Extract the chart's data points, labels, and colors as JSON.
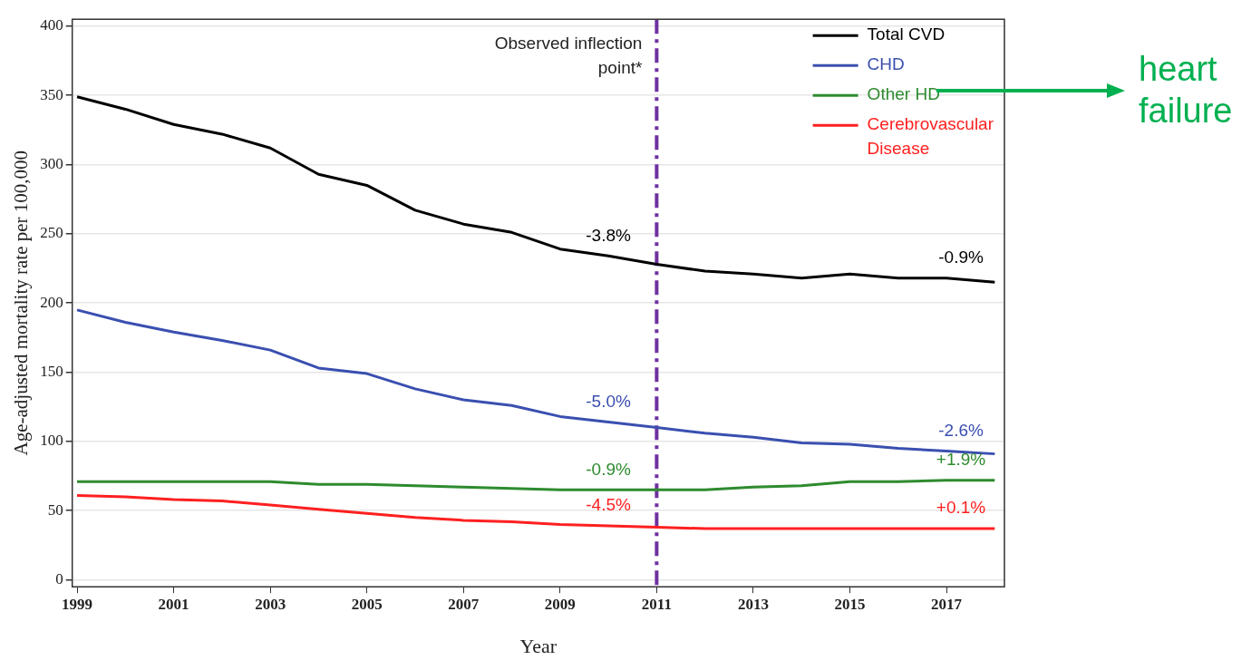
{
  "chart_data": {
    "type": "line",
    "xlabel": "Year",
    "ylabel": "Age-adjusted mortality rate per 100,000",
    "x": [
      1999,
      2000,
      2001,
      2002,
      2003,
      2004,
      2005,
      2006,
      2007,
      2008,
      2009,
      2010,
      2011,
      2012,
      2013,
      2014,
      2015,
      2016,
      2017,
      2018
    ],
    "series": [
      {
        "name": "Total CVD",
        "color": "#000000",
        "values": [
          349,
          340,
          329,
          322,
          312,
          293,
          285,
          267,
          257,
          251,
          239,
          234,
          228,
          223,
          221,
          218,
          221,
          218,
          218,
          215
        ]
      },
      {
        "name": "CHD",
        "color": "#3a4fb0",
        "values": [
          195,
          186,
          179,
          173,
          166,
          153,
          149,
          138,
          130,
          126,
          118,
          114,
          110,
          106,
          103,
          99,
          98,
          95,
          93,
          91
        ]
      },
      {
        "name": "Other HD",
        "color": "#2e8b2e",
        "values": [
          71,
          71,
          71,
          71,
          71,
          69,
          69,
          68,
          67,
          66,
          65,
          65,
          65,
          65,
          67,
          68,
          71,
          71,
          72,
          72
        ]
      },
      {
        "name": "Cerebrovascular Disease",
        "color": "#ff2020",
        "values": [
          61,
          60,
          58,
          57,
          54,
          51,
          48,
          45,
          43,
          42,
          40,
          39,
          38,
          37,
          37,
          37,
          37,
          37,
          37,
          37
        ]
      }
    ],
    "xlim": [
      1998.9,
      2018.2
    ],
    "xticks": [
      1999,
      2001,
      2003,
      2005,
      2007,
      2009,
      2011,
      2013,
      2015,
      2017
    ],
    "ylim": [
      -5,
      405
    ],
    "yticks": [
      0,
      50,
      100,
      150,
      200,
      250,
      300,
      350,
      400
    ],
    "grid": "y",
    "legend": "top right",
    "marker": "none",
    "line_style": "solid",
    "ref_lines": [
      {
        "axis": "x",
        "value": 2011,
        "label": "Observed inflection point*",
        "color": "#7030a0",
        "line_style": "dashdot"
      }
    ],
    "annotations": [
      "-3.8%",
      "-0.9%",
      "-5.0%",
      "-2.6%",
      "-0.9%",
      "+1.9%",
      "-4.5%",
      "+0.1%",
      "heart failure"
    ]
  }
}
